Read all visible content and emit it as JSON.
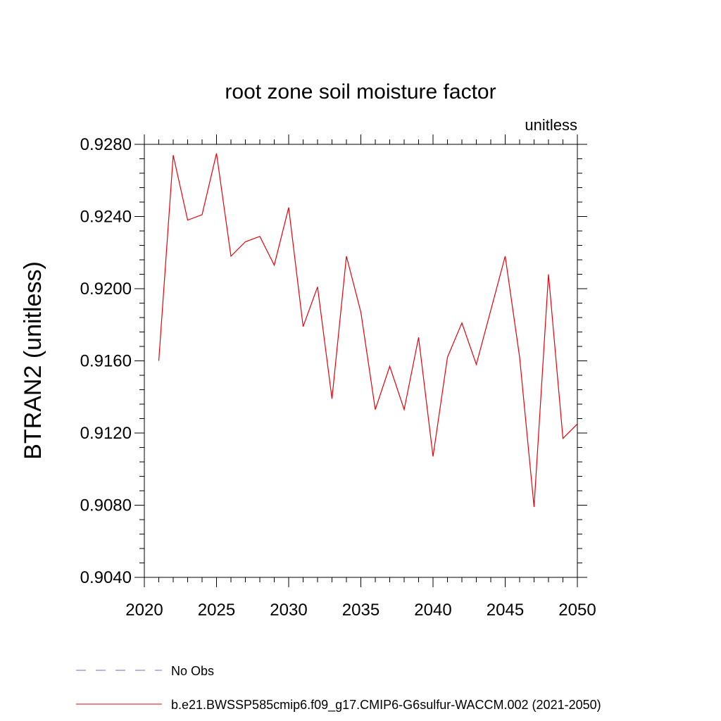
{
  "chart_data": {
    "type": "line",
    "title": "root zone soil moisture factor",
    "units_label": "unitless",
    "xlabel": "",
    "ylabel": "BTRAN2  (unitless)",
    "xlim": [
      2020,
      2050
    ],
    "ylim": [
      0.904,
      0.928
    ],
    "x_ticks": [
      2020,
      2025,
      2030,
      2035,
      2040,
      2045,
      2050
    ],
    "x_tick_labels": [
      "2020",
      "2025",
      "2030",
      "2035",
      "2040",
      "2045",
      "2050"
    ],
    "y_ticks": [
      0.904,
      0.908,
      0.912,
      0.916,
      0.92,
      0.924,
      0.928
    ],
    "y_tick_labels": [
      "0.9040",
      "0.9080",
      "0.9120",
      "0.9160",
      "0.9200",
      "0.9240",
      "0.9280"
    ],
    "grid": false,
    "legend_placement": "bottom",
    "legend": [
      {
        "label": "No Obs",
        "color": "#7b68b8",
        "style": "dashed"
      },
      {
        "label": "b.e21.BWSSP585cmip6.f09_g17.CMIP6-G6sulfur-WACCM.002 (2021-2050)",
        "color": "#e8000b",
        "style": "solid"
      }
    ],
    "series": [
      {
        "color": "#e8000b",
        "x": [
          2021,
          2022,
          2023,
          2024,
          2025,
          2026,
          2027,
          2028,
          2029,
          2030,
          2031,
          2032,
          2033,
          2034,
          2035,
          2036,
          2037,
          2038,
          2039,
          2040,
          2041,
          2042,
          2043,
          2044,
          2045,
          2046,
          2047,
          2048,
          2049,
          2050
        ],
        "values": [
          0.916,
          0.9274,
          0.9238,
          0.9241,
          0.9275,
          0.9218,
          0.9226,
          0.9229,
          0.9213,
          0.9245,
          0.9179,
          0.9201,
          0.9139,
          0.9218,
          0.9187,
          0.9133,
          0.9157,
          0.9133,
          0.9173,
          0.9107,
          0.9162,
          0.9181,
          0.9158,
          0.9188,
          0.9218,
          0.9162,
          0.9079,
          0.9208,
          0.9117,
          0.9125
        ]
      }
    ]
  }
}
